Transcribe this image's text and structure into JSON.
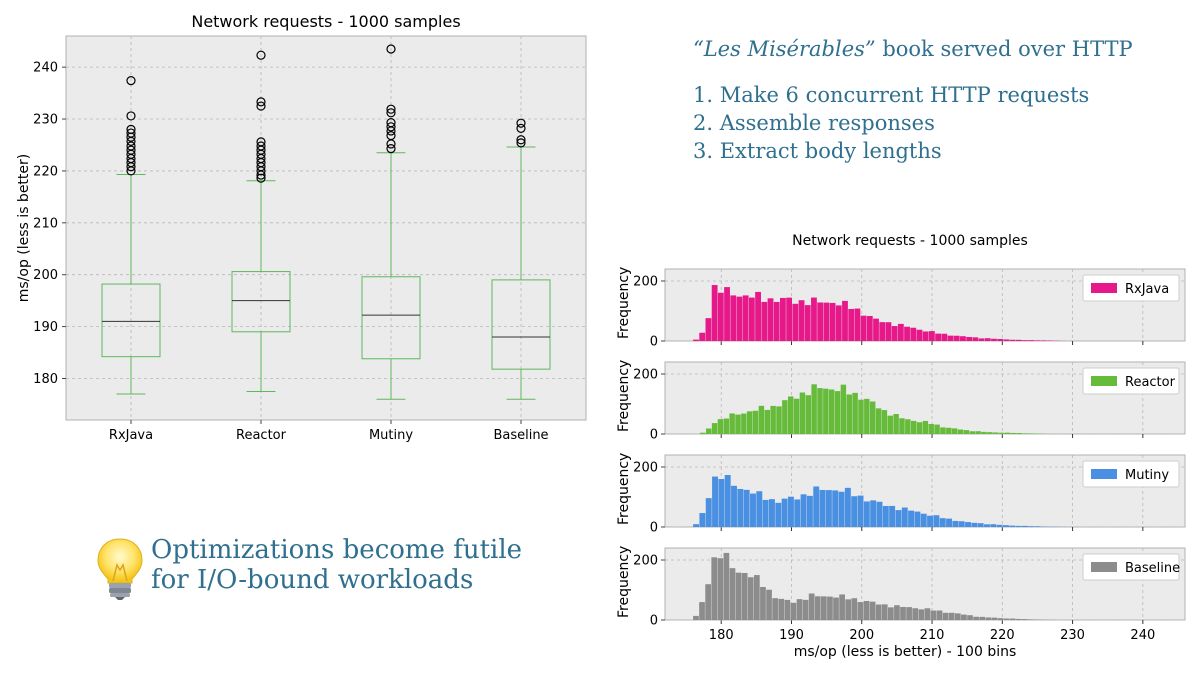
{
  "description": {
    "book_title": "“Les Misérables”",
    "headline_rest": " book served over HTTP",
    "steps": [
      "1. Make 6 concurrent HTTP requests",
      "2. Assemble responses",
      "3. Extract body lengths"
    ]
  },
  "tip": {
    "icon": "lightbulb-icon",
    "line1": "Optimizations become futile",
    "line2": "for I/O-bound workloads"
  },
  "chart_data": [
    {
      "type": "box",
      "title": "Network requests - 1000 samples",
      "xlabel": "",
      "ylabel": "ms/op (less is better)",
      "ylim": [
        172,
        246
      ],
      "yticks": [
        180,
        190,
        200,
        210,
        220,
        230,
        240
      ],
      "grid": true,
      "color": "#5cb85c",
      "series": [
        {
          "name": "RxJava",
          "whisker_low": 177,
          "q1": 184.2,
          "median": 191,
          "q3": 198.2,
          "whisker_high": 219.3,
          "outliers": [
            237.4,
            230.6,
            228,
            227.3,
            226.5,
            225.7,
            224.8,
            224,
            223.2,
            222.4,
            221.6,
            220.8,
            220
          ]
        },
        {
          "name": "Reactor",
          "whisker_low": 177.5,
          "q1": 189,
          "median": 195,
          "q3": 200.6,
          "whisker_high": 218.1,
          "outliers": [
            242.3,
            233.3,
            232.5,
            225.6,
            224.8,
            224,
            223.2,
            222.4,
            221.6,
            220.8,
            220,
            219.2,
            218.6
          ]
        },
        {
          "name": "Mutiny",
          "whisker_low": 176,
          "q1": 183.8,
          "median": 192.2,
          "q3": 199.6,
          "whisker_high": 223.5,
          "outliers": [
            243.5,
            231.9,
            231.2,
            229.3,
            228.5,
            227.7,
            226.8,
            225.2,
            224.3
          ]
        },
        {
          "name": "Baseline",
          "whisker_low": 176,
          "q1": 181.8,
          "median": 188,
          "q3": 199,
          "whisker_high": 224.6,
          "outliers": [
            229.2,
            228.2,
            226,
            225.4
          ]
        }
      ]
    },
    {
      "type": "histogram",
      "title": "Network requests - 1000 samples",
      "xlabel": "ms/op (less is better) - 100 bins",
      "ylabel": "Frequency",
      "xlim": [
        172,
        246
      ],
      "xticks": [
        180,
        190,
        200,
        210,
        220,
        230,
        240
      ],
      "ylim": [
        0,
        240
      ],
      "yticks": [
        0,
        200
      ],
      "grid": true,
      "legend_position": "top-right",
      "series": [
        {
          "name": "RxJava",
          "color": "#e7198a",
          "anchors": [
            [
              176,
              0
            ],
            [
              177,
              10
            ],
            [
              178,
              60
            ],
            [
              179,
              180
            ],
            [
              181,
              160
            ],
            [
              184,
              150
            ],
            [
              187,
              140
            ],
            [
              190,
              135
            ],
            [
              193,
              130
            ],
            [
              196,
              130
            ],
            [
              199,
              110
            ],
            [
              202,
              70
            ],
            [
              205,
              55
            ],
            [
              208,
              40
            ],
            [
              211,
              25
            ],
            [
              214,
              16
            ],
            [
              217,
              10
            ],
            [
              220,
              6
            ],
            [
              223,
              3
            ],
            [
              226,
              2
            ],
            [
              229,
              0
            ]
          ]
        },
        {
          "name": "Reactor",
          "color": "#66bb3a",
          "anchors": [
            [
              177,
              0
            ],
            [
              178,
              10
            ],
            [
              179,
              40
            ],
            [
              182,
              65
            ],
            [
              185,
              80
            ],
            [
              188,
              95
            ],
            [
              191,
              130
            ],
            [
              194,
              155
            ],
            [
              197,
              150
            ],
            [
              200,
              125
            ],
            [
              203,
              80
            ],
            [
              206,
              50
            ],
            [
              209,
              40
            ],
            [
              212,
              22
            ],
            [
              215,
              12
            ],
            [
              218,
              6
            ],
            [
              221,
              4
            ],
            [
              224,
              2
            ],
            [
              227,
              0
            ]
          ]
        },
        {
          "name": "Mutiny",
          "color": "#4a90e2",
          "anchors": [
            [
              176,
              0
            ],
            [
              177,
              20
            ],
            [
              178,
              90
            ],
            [
              179,
              160
            ],
            [
              180,
              170
            ],
            [
              182,
              140
            ],
            [
              185,
              110
            ],
            [
              188,
              85
            ],
            [
              191,
              100
            ],
            [
              194,
              125
            ],
            [
              197,
              125
            ],
            [
              200,
              100
            ],
            [
              203,
              75
            ],
            [
              206,
              60
            ],
            [
              209,
              45
            ],
            [
              212,
              28
            ],
            [
              215,
              16
            ],
            [
              218,
              10
            ],
            [
              221,
              5
            ],
            [
              224,
              3
            ],
            [
              227,
              1
            ],
            [
              230,
              0
            ]
          ]
        },
        {
          "name": "Baseline",
          "color": "#8c8c8c",
          "anchors": [
            [
              176,
              0
            ],
            [
              177,
              30
            ],
            [
              178,
              120
            ],
            [
              179,
              200
            ],
            [
              180,
              220
            ],
            [
              182,
              170
            ],
            [
              184,
              150
            ],
            [
              186,
              120
            ],
            [
              188,
              70
            ],
            [
              190,
              60
            ],
            [
              193,
              80
            ],
            [
              196,
              80
            ],
            [
              199,
              70
            ],
            [
              202,
              55
            ],
            [
              205,
              45
            ],
            [
              208,
              40
            ],
            [
              211,
              30
            ],
            [
              214,
              20
            ],
            [
              217,
              10
            ],
            [
              220,
              6
            ],
            [
              223,
              3
            ],
            [
              226,
              1
            ],
            [
              228,
              0
            ]
          ]
        }
      ]
    }
  ]
}
